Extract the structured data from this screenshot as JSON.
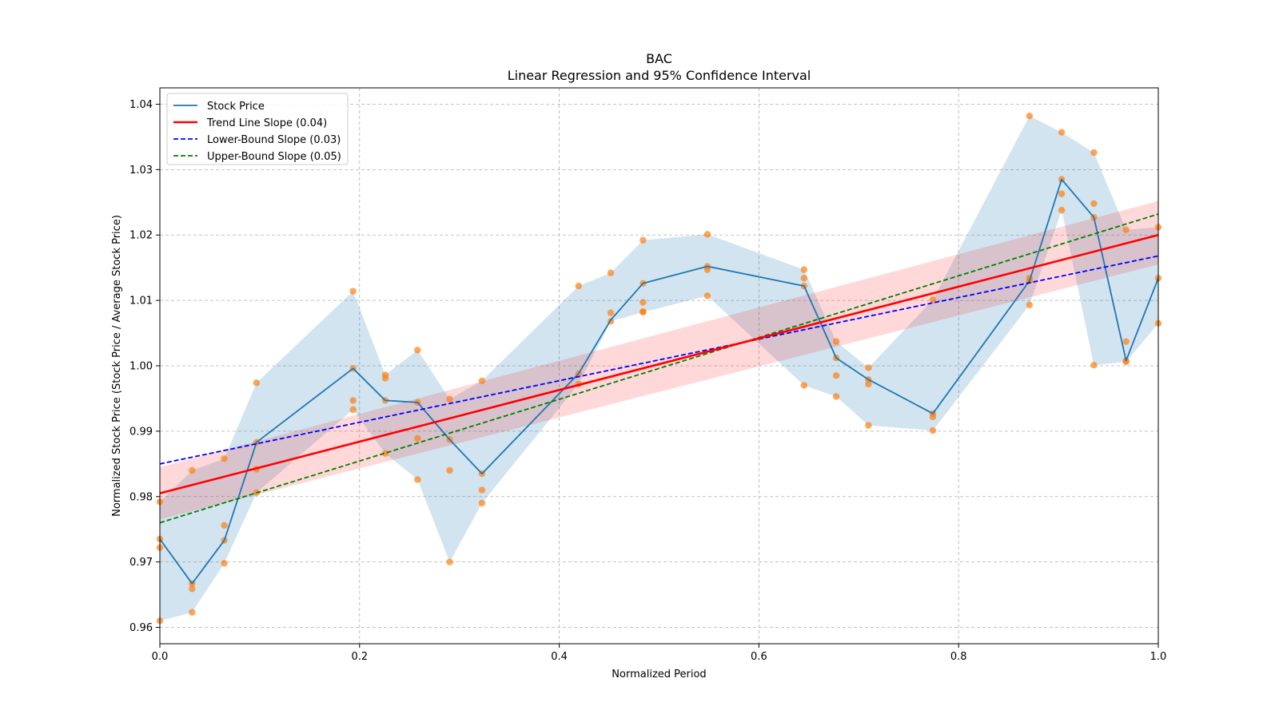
{
  "chart_data": {
    "type": "line",
    "title": "BAC",
    "subtitle": "Linear Regression and 95% Confidence Interval",
    "xlabel": "Normalized Period",
    "ylabel": "Normalized Stock Price (Stock Price / Average Stock Price)",
    "xlim": [
      0.0,
      1.0
    ],
    "ylim": [
      0.9575,
      1.0425
    ],
    "xticks": [
      0.0,
      0.2,
      0.4,
      0.6,
      0.8,
      1.0
    ],
    "xtick_labels": [
      "0.0",
      "0.2",
      "0.4",
      "0.6",
      "0.8",
      "1.0"
    ],
    "yticks": [
      0.96,
      0.97,
      0.98,
      0.99,
      1.0,
      1.01,
      1.02,
      1.03,
      1.04
    ],
    "ytick_labels": [
      "0.96",
      "0.97",
      "0.98",
      "0.99",
      "1.00",
      "1.01",
      "1.02",
      "1.03",
      "1.04"
    ],
    "grid": true,
    "legend_position": "top-left",
    "legend": [
      {
        "label": "Stock Price",
        "color": "#1f77b4",
        "style": "solid"
      },
      {
        "label": "Trend Line Slope (0.04)",
        "color": "#ff0000",
        "style": "solid"
      },
      {
        "label": "Lower-Bound Slope (0.03)",
        "color": "#0000ff",
        "style": "dashed"
      },
      {
        "label": "Upper-Bound Slope (0.05)",
        "color": "#008000",
        "style": "dashed"
      }
    ],
    "stock_price": {
      "x": [
        0.0,
        0.0323,
        0.0645,
        0.0968,
        0.1935,
        0.2258,
        0.2581,
        0.2903,
        0.3226,
        0.4194,
        0.4516,
        0.4839,
        0.5484,
        0.6452,
        0.6774,
        0.7097,
        0.7742,
        0.871,
        0.9032,
        0.9355,
        0.9677,
        1.0
      ],
      "y": [
        0.9735,
        0.9667,
        0.9733,
        0.9883,
        0.9996,
        0.9947,
        0.9944,
        0.9887,
        0.9835,
        0.9988,
        1.007,
        1.0126,
        1.0152,
        1.0122,
        1.0012,
        0.9979,
        0.9927,
        1.013,
        1.0285,
        1.0227,
        1.0008,
        1.0134
      ]
    },
    "price_band": {
      "x": [
        0.0,
        0.0323,
        0.0645,
        0.0968,
        0.1935,
        0.2258,
        0.2581,
        0.2903,
        0.3226,
        0.4194,
        0.4516,
        0.4839,
        0.5484,
        0.6452,
        0.6774,
        0.7097,
        0.7742,
        0.871,
        0.9032,
        0.9355,
        0.9677,
        1.0
      ],
      "lower": [
        0.961,
        0.9623,
        0.9698,
        0.9806,
        0.9933,
        0.9866,
        0.9826,
        0.97,
        0.979,
        0.9972,
        1.0068,
        1.0082,
        1.0107,
        0.997,
        0.9953,
        0.9909,
        0.9901,
        1.0093,
        1.0238,
        1.0001,
        1.0006,
        1.0065
      ],
      "upper": [
        0.9792,
        0.984,
        0.9858,
        0.9974,
        1.0114,
        0.9986,
        1.0024,
        0.9949,
        0.9977,
        1.0122,
        1.0142,
        1.0192,
        1.0201,
        1.0147,
        1.0037,
        0.9997,
        1.0101,
        1.0382,
        1.0357,
        1.0326,
        1.0208,
        1.0212
      ]
    },
    "scatter": {
      "x": [
        0.0,
        0.0,
        0.0,
        0.0,
        0.0323,
        0.0323,
        0.0323,
        0.0323,
        0.0645,
        0.0645,
        0.0645,
        0.0645,
        0.0968,
        0.0968,
        0.0968,
        0.0968,
        0.1935,
        0.1935,
        0.1935,
        0.1935,
        0.2258,
        0.2258,
        0.2258,
        0.2258,
        0.2581,
        0.2581,
        0.2581,
        0.2581,
        0.2903,
        0.2903,
        0.2903,
        0.2903,
        0.3226,
        0.3226,
        0.3226,
        0.3226,
        0.4194,
        0.4194,
        0.4194,
        0.4516,
        0.4516,
        0.4516,
        0.4839,
        0.4839,
        0.4839,
        0.4839,
        0.4839,
        0.5484,
        0.5484,
        0.5484,
        0.5484,
        0.6452,
        0.6452,
        0.6452,
        0.6452,
        0.6774,
        0.6774,
        0.6774,
        0.6774,
        0.7097,
        0.7097,
        0.7097,
        0.7097,
        0.7742,
        0.7742,
        0.7742,
        0.7742,
        0.871,
        0.871,
        0.871,
        0.871,
        0.9032,
        0.9032,
        0.9032,
        0.9032,
        0.9355,
        0.9355,
        0.9355,
        0.9355,
        0.9677,
        0.9677,
        0.9677,
        0.9677,
        1.0,
        1.0,
        1.0
      ],
      "y": [
        0.9792,
        0.9735,
        0.9722,
        0.961,
        0.984,
        0.9667,
        0.9659,
        0.9623,
        0.9858,
        0.9756,
        0.9733,
        0.9698,
        0.9974,
        0.9883,
        0.9842,
        0.9806,
        1.0114,
        0.9996,
        0.9947,
        0.9933,
        0.9986,
        0.9981,
        0.9947,
        0.9866,
        1.0024,
        0.9944,
        0.9889,
        0.9826,
        0.9949,
        0.9887,
        0.984,
        0.97,
        0.9977,
        0.9835,
        0.981,
        0.979,
        1.0122,
        0.9988,
        0.9972,
        1.0142,
        1.0081,
        1.0068,
        1.0192,
        1.0126,
        1.0097,
        1.0083,
        1.0082,
        1.0201,
        1.0152,
        1.0147,
        1.0107,
        1.0147,
        1.0134,
        1.0122,
        0.997,
        1.0037,
        1.0012,
        0.9985,
        0.9953,
        0.9997,
        0.9979,
        0.9972,
        0.9909,
        1.0101,
        0.9927,
        0.9922,
        0.9901,
        1.0382,
        1.0134,
        1.013,
        1.0093,
        1.0357,
        1.0285,
        1.0263,
        1.0238,
        1.0326,
        1.0248,
        1.0227,
        1.0001,
        1.0208,
        1.0037,
        1.0008,
        1.0006,
        1.0212,
        1.0134,
        1.0065
      ]
    },
    "trend_line": {
      "x": [
        0.0,
        1.0
      ],
      "y": [
        0.9805,
        1.02
      ],
      "ci_lower": [
        0.9765,
        1.0155
      ],
      "ci_upper": [
        0.9845,
        1.0252
      ]
    },
    "lower_bound_line": {
      "x": [
        0.0,
        1.0
      ],
      "y": [
        0.985,
        1.0168
      ]
    },
    "upper_bound_line": {
      "x": [
        0.0,
        1.0
      ],
      "y": [
        0.976,
        1.0232
      ]
    },
    "colors": {
      "price": "#1f77b4",
      "band": "#1f77b4",
      "scatter": "#ff7f0e",
      "trend": "#ff0000",
      "trend_ci": "#ff0000",
      "lower": "#0000ff",
      "upper": "#008000",
      "grid": "#b0b0b0"
    }
  }
}
